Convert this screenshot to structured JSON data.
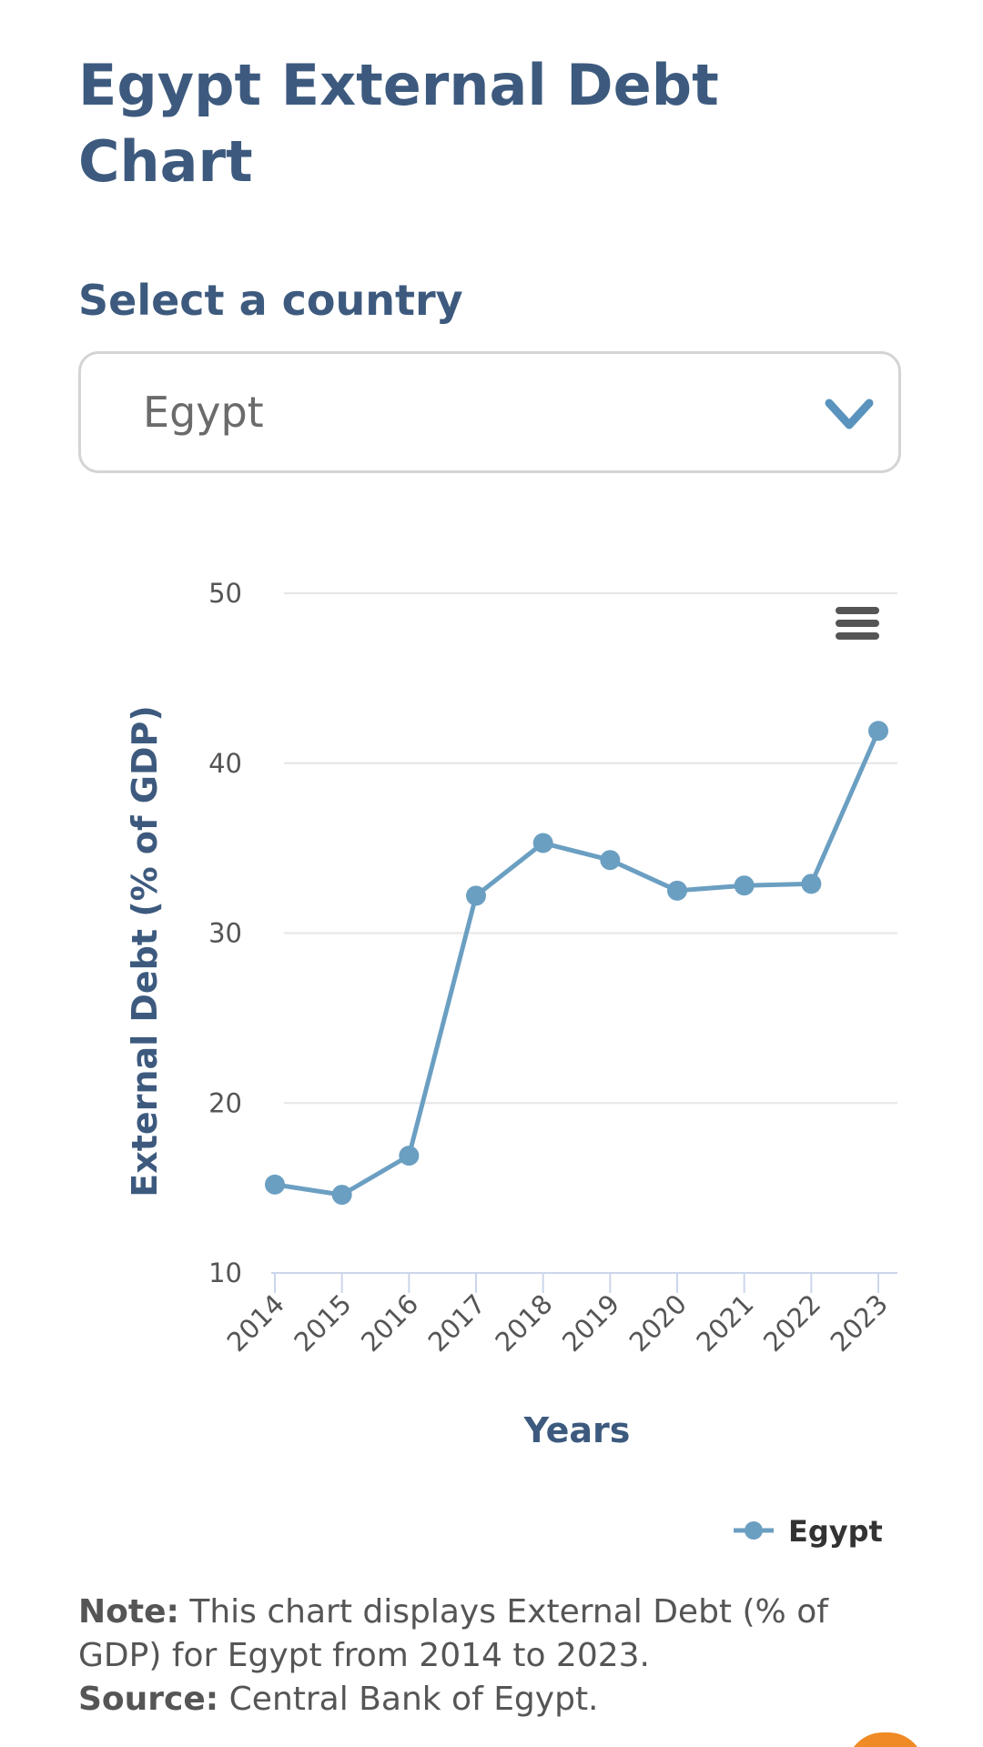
{
  "page": {
    "title": "Egypt External Debt Chart",
    "select_label": "Select a country",
    "select_value": "Egypt"
  },
  "note": {
    "note_label": "Note:",
    "note_text": "This chart displays External Debt (% of GDP) for Egypt from 2014 to 2023.",
    "source_label": "Source:",
    "source_text": "Central Bank of Egypt."
  },
  "icons": {
    "select": "chevron-down-icon",
    "chart_menu": "hamburger-menu-icon"
  },
  "colors": {
    "title": "#3d5a7e",
    "series": "#6b9fc2",
    "accent_fab": "#f08a24"
  },
  "chart_data": {
    "type": "line",
    "title": "",
    "xlabel": "Years",
    "ylabel": "External Debt (% of GDP)",
    "categories": [
      "2014",
      "2015",
      "2016",
      "2017",
      "2018",
      "2019",
      "2020",
      "2021",
      "2022",
      "2023"
    ],
    "series": [
      {
        "name": "Egypt",
        "values": [
          15.2,
          14.6,
          16.9,
          32.2,
          35.3,
          34.3,
          32.5,
          32.8,
          32.9,
          41.9
        ]
      }
    ],
    "ylim": [
      10,
      50
    ],
    "yticks": [
      "10",
      "20",
      "30",
      "40",
      "50"
    ],
    "grid": true,
    "legend_position": "bottom-right"
  }
}
